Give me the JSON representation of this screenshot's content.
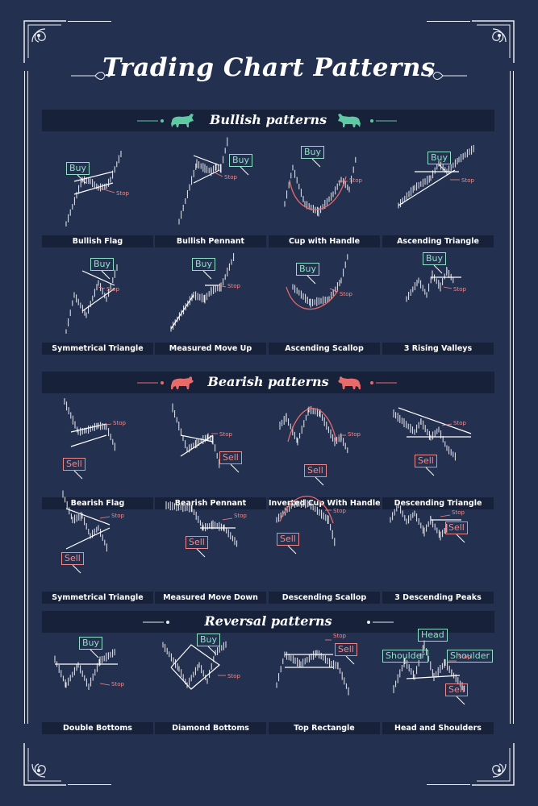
{
  "title": "Trading Chart Patterns",
  "colors": {
    "background": "#24304f",
    "band": "#17213a",
    "buy": "#8fe0c6",
    "sell": "#f08a8a",
    "bull_icon": "#5fc9a3",
    "bear_icon": "#e86a6a"
  },
  "sections": [
    {
      "label": "Bullish patterns",
      "icon": "bull-icon",
      "patterns": [
        {
          "name": "Bullish Flag",
          "labels": [
            {
              "type": "buy",
              "text": "Buy"
            }
          ],
          "stop": "Stop"
        },
        {
          "name": "Bullish Pennant",
          "labels": [
            {
              "type": "buy",
              "text": "Buy"
            }
          ],
          "stop": "Stop"
        },
        {
          "name": "Cup with Handle",
          "labels": [
            {
              "type": "buy",
              "text": "Buy"
            }
          ],
          "stop": "Stop"
        },
        {
          "name": "Ascending Triangle",
          "labels": [
            {
              "type": "buy",
              "text": "Buy"
            }
          ],
          "stop": "Stop"
        },
        {
          "name": "Symmetrical Triangle",
          "labels": [
            {
              "type": "buy",
              "text": "Buy"
            }
          ],
          "stop": "Stop"
        },
        {
          "name": "Measured Move Up",
          "labels": [
            {
              "type": "buy",
              "text": "Buy"
            }
          ],
          "stop": "Stop"
        },
        {
          "name": "Ascending Scallop",
          "labels": [
            {
              "type": "buy",
              "text": "Buy"
            }
          ],
          "stop": "Stop"
        },
        {
          "name": "3 Rising Valleys",
          "labels": [
            {
              "type": "buy",
              "text": "Buy"
            }
          ],
          "stop": "Stop"
        }
      ]
    },
    {
      "label": "Bearish patterns",
      "icon": "bear-icon",
      "patterns": [
        {
          "name": "Bearish Flag",
          "labels": [
            {
              "type": "sell",
              "text": "Sell"
            }
          ],
          "stop": "Stop"
        },
        {
          "name": "Bearish Pennant",
          "labels": [
            {
              "type": "sell",
              "text": "Sell"
            }
          ],
          "stop": "Stop"
        },
        {
          "name": "Inverted Cup With Handle",
          "labels": [
            {
              "type": "sell",
              "text": "Sell"
            }
          ],
          "stop": "Stop"
        },
        {
          "name": "Descending Triangle",
          "labels": [
            {
              "type": "sell",
              "text": "Sell"
            }
          ],
          "stop": "Stop"
        },
        {
          "name": "Symmetrical Triangle",
          "labels": [
            {
              "type": "sell",
              "text": "Sell"
            }
          ],
          "stop": "Stop"
        },
        {
          "name": "Measured Move Down",
          "labels": [
            {
              "type": "sell",
              "text": "Sell"
            }
          ],
          "stop": "Stop"
        },
        {
          "name": "Descending Scallop",
          "labels": [
            {
              "type": "sell",
              "text": "Sell"
            }
          ],
          "stop": "Stop"
        },
        {
          "name": "3 Descending Peaks",
          "labels": [
            {
              "type": "sell",
              "text": "Sell"
            }
          ],
          "stop": "Stop"
        }
      ]
    },
    {
      "label": "Reversal patterns",
      "icon": "",
      "patterns": [
        {
          "name": "Double Bottoms",
          "labels": [
            {
              "type": "buy",
              "text": "Buy"
            }
          ],
          "stop": "Stop"
        },
        {
          "name": "Diamond Bottoms",
          "labels": [
            {
              "type": "buy",
              "text": "Buy"
            }
          ],
          "stop": "Stop"
        },
        {
          "name": "Top Rectangle",
          "labels": [
            {
              "type": "sell",
              "text": "Sell"
            }
          ],
          "stop": "Stop"
        },
        {
          "name": "Head and Shoulders",
          "labels": [
            {
              "type": "sell",
              "text": "Sell"
            },
            {
              "type": "buy",
              "text": "Head"
            },
            {
              "type": "buy",
              "text": "Shoulder"
            },
            {
              "type": "buy",
              "text": "Shoulder"
            }
          ],
          "stop": "Stop"
        }
      ]
    }
  ]
}
